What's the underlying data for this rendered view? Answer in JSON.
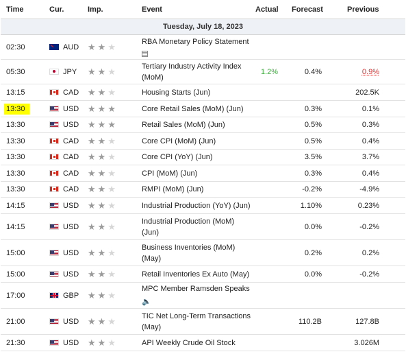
{
  "headers": {
    "time": "Time",
    "currency": "Cur.",
    "importance": "Imp.",
    "event": "Event",
    "actual": "Actual",
    "forecast": "Forecast",
    "previous": "Previous"
  },
  "date": "Tuesday, July 18, 2023",
  "colors": {
    "actual_positive": "#3cae3c",
    "previous_revised": "#e23636",
    "highlight": "#ffff00",
    "date_bg": "#eef1f5"
  },
  "rows": [
    {
      "time": "02:30",
      "currency": "AUD",
      "flag": "aud",
      "stars": 2,
      "event": "RBA Monetary Policy Statement",
      "event2": "",
      "icon": "document-icon",
      "actual": "",
      "forecast": "",
      "previous": "",
      "h": 36
    },
    {
      "time": "05:30",
      "currency": "JPY",
      "flag": "jpy",
      "stars": 2,
      "event": "Tertiary Industry Activity Index",
      "event2": "(MoM)",
      "icon": "",
      "actual": "1.2%",
      "forecast": "0.4%",
      "previous": "0.9%",
      "h": 36
    },
    {
      "time": "13:15",
      "currency": "CAD",
      "flag": "cad",
      "stars": 2,
      "event": "Housing Starts (Jun)",
      "event2": "",
      "icon": "",
      "actual": "",
      "forecast": "",
      "previous": "202.5K",
      "h": 24
    },
    {
      "time": "13:30",
      "currency": "USD",
      "flag": "usd",
      "stars": 3,
      "event": "Core Retail Sales (MoM) (Jun)",
      "event2": "",
      "icon": "",
      "actual": "",
      "forecast": "0.3%",
      "previous": "0.1%",
      "h": 24,
      "highlight": true
    },
    {
      "time": "13:30",
      "currency": "USD",
      "flag": "usd",
      "stars": 3,
      "event": "Retail Sales (MoM) (Jun)",
      "event2": "",
      "icon": "",
      "actual": "",
      "forecast": "0.5%",
      "previous": "0.3%",
      "h": 23
    },
    {
      "time": "13:30",
      "currency": "CAD",
      "flag": "cad",
      "stars": 2,
      "event": "Core CPI (MoM) (Jun)",
      "event2": "",
      "icon": "",
      "actual": "",
      "forecast": "0.5%",
      "previous": "0.4%",
      "h": 24
    },
    {
      "time": "13:30",
      "currency": "CAD",
      "flag": "cad",
      "stars": 2,
      "event": "Core CPI (YoY) (Jun)",
      "event2": "",
      "icon": "",
      "actual": "",
      "forecast": "3.5%",
      "previous": "3.7%",
      "h": 23
    },
    {
      "time": "13:30",
      "currency": "CAD",
      "flag": "cad",
      "stars": 2,
      "event": "CPI (MoM) (Jun)",
      "event2": "",
      "icon": "",
      "actual": "",
      "forecast": "0.3%",
      "previous": "0.4%",
      "h": 24
    },
    {
      "time": "13:30",
      "currency": "CAD",
      "flag": "cad",
      "stars": 2,
      "event": "RMPI (MoM) (Jun)",
      "event2": "",
      "icon": "",
      "actual": "",
      "forecast": "-0.2%",
      "previous": "-4.9%",
      "h": 23
    },
    {
      "time": "14:15",
      "currency": "USD",
      "flag": "usd",
      "stars": 2,
      "event": "Industrial Production (YoY) (Jun)",
      "event2": "",
      "icon": "",
      "actual": "",
      "forecast": "1.10%",
      "previous": "0.23%",
      "h": 24
    },
    {
      "time": "14:15",
      "currency": "USD",
      "flag": "usd",
      "stars": 2,
      "event": "Industrial Production (MoM)",
      "event2": "(Jun)",
      "icon": "",
      "actual": "",
      "forecast": "0.0%",
      "previous": "-0.2%",
      "h": 38
    },
    {
      "time": "15:00",
      "currency": "USD",
      "flag": "usd",
      "stars": 2,
      "event": "Business Inventories (MoM)",
      "event2": "(May)",
      "icon": "",
      "actual": "",
      "forecast": "0.2%",
      "previous": "0.2%",
      "h": 38
    },
    {
      "time": "15:00",
      "currency": "USD",
      "flag": "usd",
      "stars": 2,
      "event": "Retail Inventories Ex Auto (May)",
      "event2": "",
      "icon": "",
      "actual": "",
      "forecast": "0.0%",
      "previous": "-0.2%",
      "h": 24
    },
    {
      "time": "17:00",
      "currency": "GBP",
      "flag": "gbp",
      "stars": 2,
      "event": "MPC Member Ramsden Speaks",
      "event2": "",
      "icon": "speaker-icon",
      "actual": "",
      "forecast": "",
      "previous": "",
      "h": 38
    },
    {
      "time": "21:00",
      "currency": "USD",
      "flag": "usd",
      "stars": 2,
      "event": "TIC Net Long-Term Transactions",
      "event2": "(May)",
      "icon": "",
      "actual": "",
      "forecast": "110.2B",
      "previous": "127.8B",
      "h": 38
    },
    {
      "time": "21:30",
      "currency": "USD",
      "flag": "usd",
      "stars": 2,
      "event": "API Weekly Crude Oil Stock",
      "event2": "",
      "icon": "",
      "actual": "",
      "forecast": "",
      "previous": "3.026M",
      "h": 24
    }
  ]
}
